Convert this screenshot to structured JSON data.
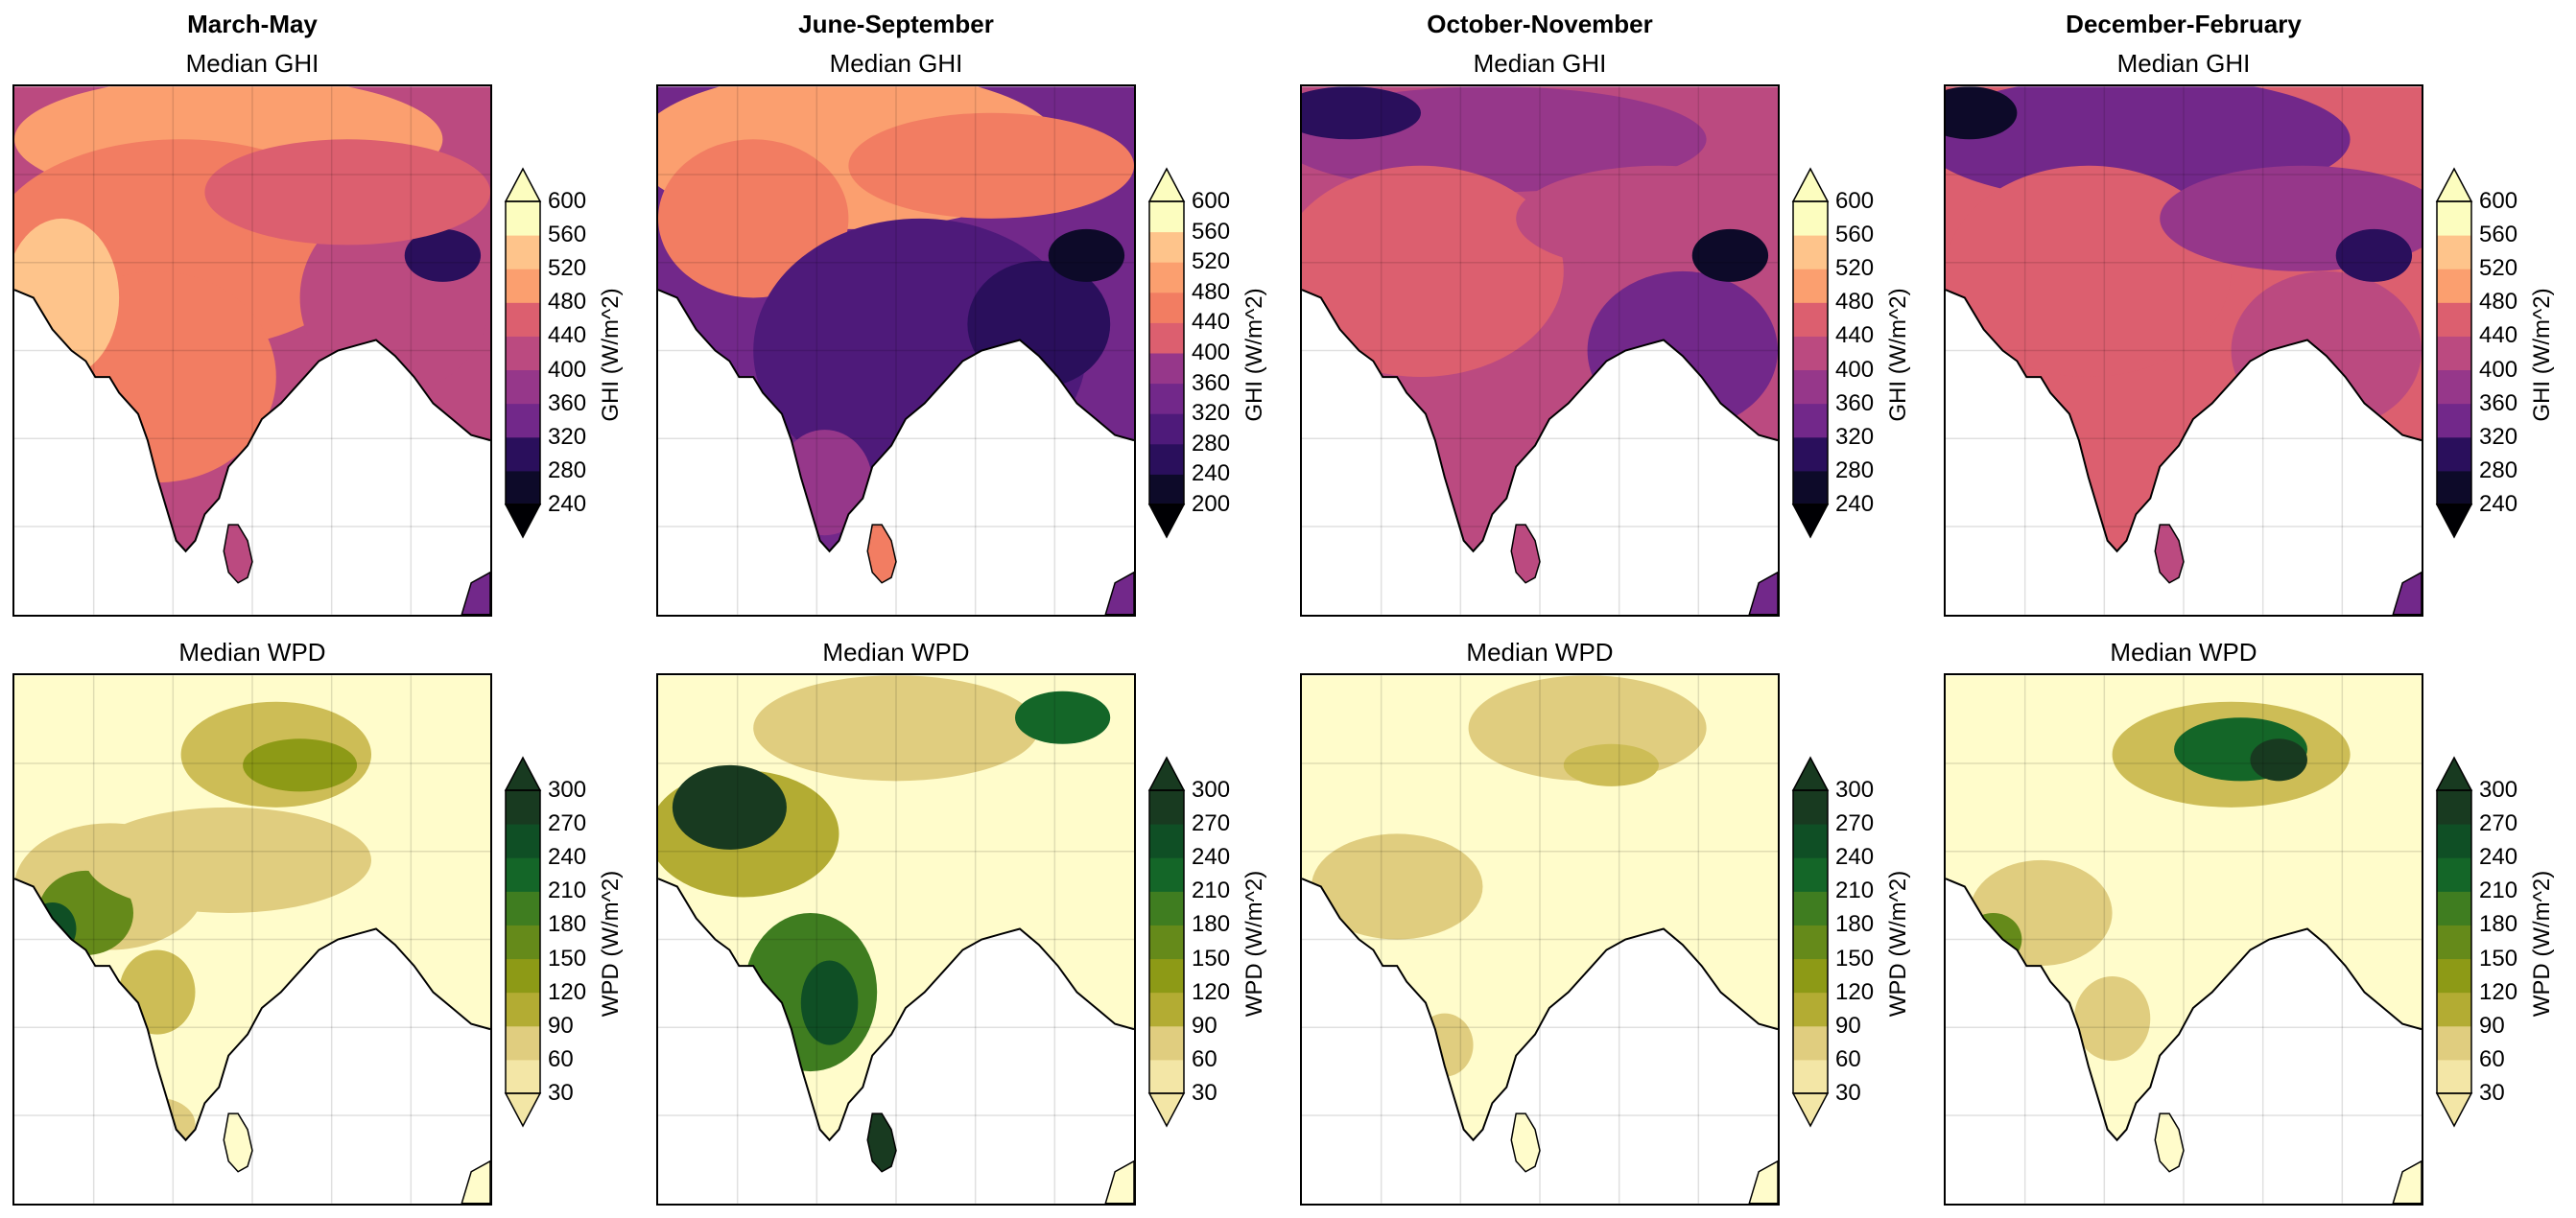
{
  "figure": {
    "columns": [
      {
        "season": "March-May",
        "ghi_title": "Median GHI",
        "wpd_title": "Median WPD",
        "ghi_ticks": [
          "600",
          "560",
          "520",
          "480",
          "440",
          "400",
          "360",
          "320",
          "280",
          "240"
        ],
        "wpd_ticks": [
          "300",
          "270",
          "240",
          "210",
          "180",
          "150",
          "120",
          "90",
          "60",
          "30"
        ],
        "ghi_label": "GHI (W/m^2)",
        "wpd_label": "WPD (W/m^2)"
      },
      {
        "season": "June-September",
        "ghi_title": "Median GHI",
        "wpd_title": "Median WPD",
        "ghi_ticks": [
          "600",
          "560",
          "520",
          "480",
          "440",
          "400",
          "360",
          "320",
          "280",
          "240",
          "200"
        ],
        "wpd_ticks": [
          "300",
          "270",
          "240",
          "210",
          "180",
          "150",
          "120",
          "90",
          "60",
          "30"
        ],
        "ghi_label": "GHI (W/m^2)",
        "wpd_label": "WPD (W/m^2)"
      },
      {
        "season": "October-November",
        "ghi_title": "Median GHI",
        "wpd_title": "Median WPD",
        "ghi_ticks": [
          "600",
          "560",
          "520",
          "480",
          "440",
          "400",
          "360",
          "320",
          "280",
          "240"
        ],
        "wpd_ticks": [
          "300",
          "270",
          "240",
          "210",
          "180",
          "150",
          "120",
          "90",
          "60",
          "30"
        ],
        "ghi_label": "GHI (W/m^2)",
        "wpd_label": "WPD (W/m^2)"
      },
      {
        "season": "December-February",
        "ghi_title": "Median GHI",
        "wpd_title": "Median WPD",
        "ghi_ticks": [
          "600",
          "560",
          "520",
          "480",
          "440",
          "400",
          "360",
          "320",
          "280",
          "240"
        ],
        "wpd_ticks": [
          "300",
          "270",
          "240",
          "210",
          "180",
          "150",
          "120",
          "90",
          "60",
          "30"
        ],
        "ghi_label": "GHI (W/m^2)",
        "wpd_label": "WPD (W/m^2)"
      }
    ],
    "colors": {
      "magma": [
        "#0d0a29",
        "#2a0f5c",
        "#4e1a7a",
        "#72288a",
        "#96378a",
        "#bb4a80",
        "#dc5f6f",
        "#f27d62",
        "#fb9f6f",
        "#fec48b",
        "#fcfdbf"
      ],
      "greens": [
        "#f3e6a6",
        "#e0cd7f",
        "#cdbd56",
        "#b3ac33",
        "#8d9a16",
        "#658a1a",
        "#3f7d20",
        "#237324",
        "#146628",
        "#0f4f25",
        "#183a20"
      ],
      "land_bg": "#fffccb"
    }
  }
}
